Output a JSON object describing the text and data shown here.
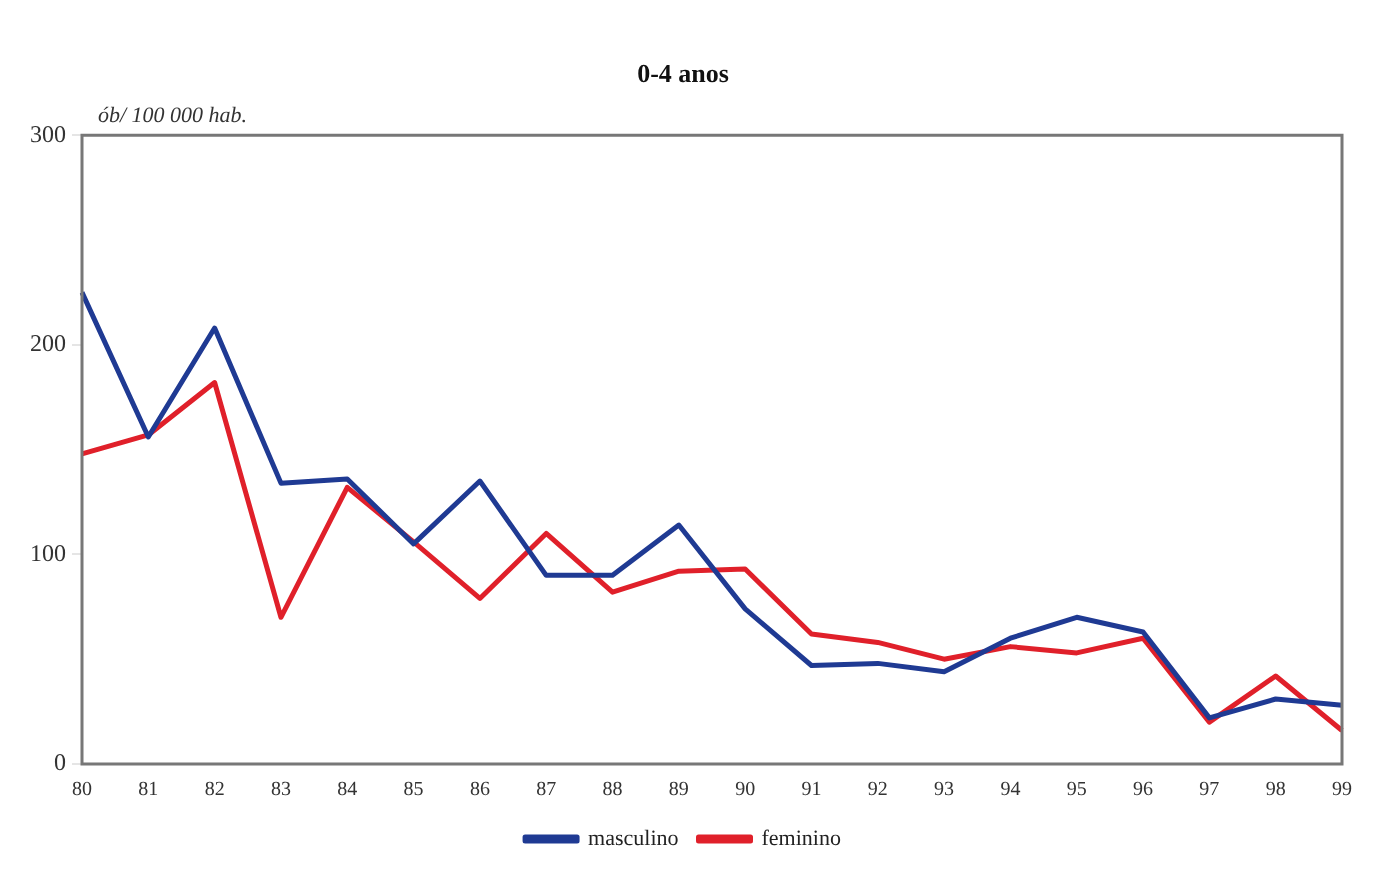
{
  "chart_data": {
    "type": "line",
    "title": "0-4 anos",
    "ylabel": "ób/ 100 000 hab.",
    "categories": [
      "80",
      "81",
      "82",
      "83",
      "84",
      "85",
      "86",
      "87",
      "88",
      "89",
      "90",
      "91",
      "92",
      "93",
      "94",
      "95",
      "96",
      "97",
      "98",
      "99"
    ],
    "series": [
      {
        "name": "masculino",
        "color": "#1f3a93",
        "values": [
          225,
          156,
          208,
          134,
          136,
          105,
          135,
          90,
          90,
          114,
          74,
          47,
          48,
          44,
          60,
          70,
          63,
          22,
          31,
          28
        ]
      },
      {
        "name": "feminino",
        "color": "#e0202a",
        "values": [
          148,
          157,
          182,
          70,
          132,
          106,
          79,
          110,
          82,
          92,
          93,
          62,
          58,
          50,
          56,
          53,
          60,
          20,
          42,
          16
        ]
      }
    ],
    "ylim": [
      0,
      300
    ],
    "yticks": [
      0,
      100,
      200,
      300
    ],
    "grid": false,
    "legend": "bottom",
    "marker": "none",
    "line_style": "solid"
  }
}
